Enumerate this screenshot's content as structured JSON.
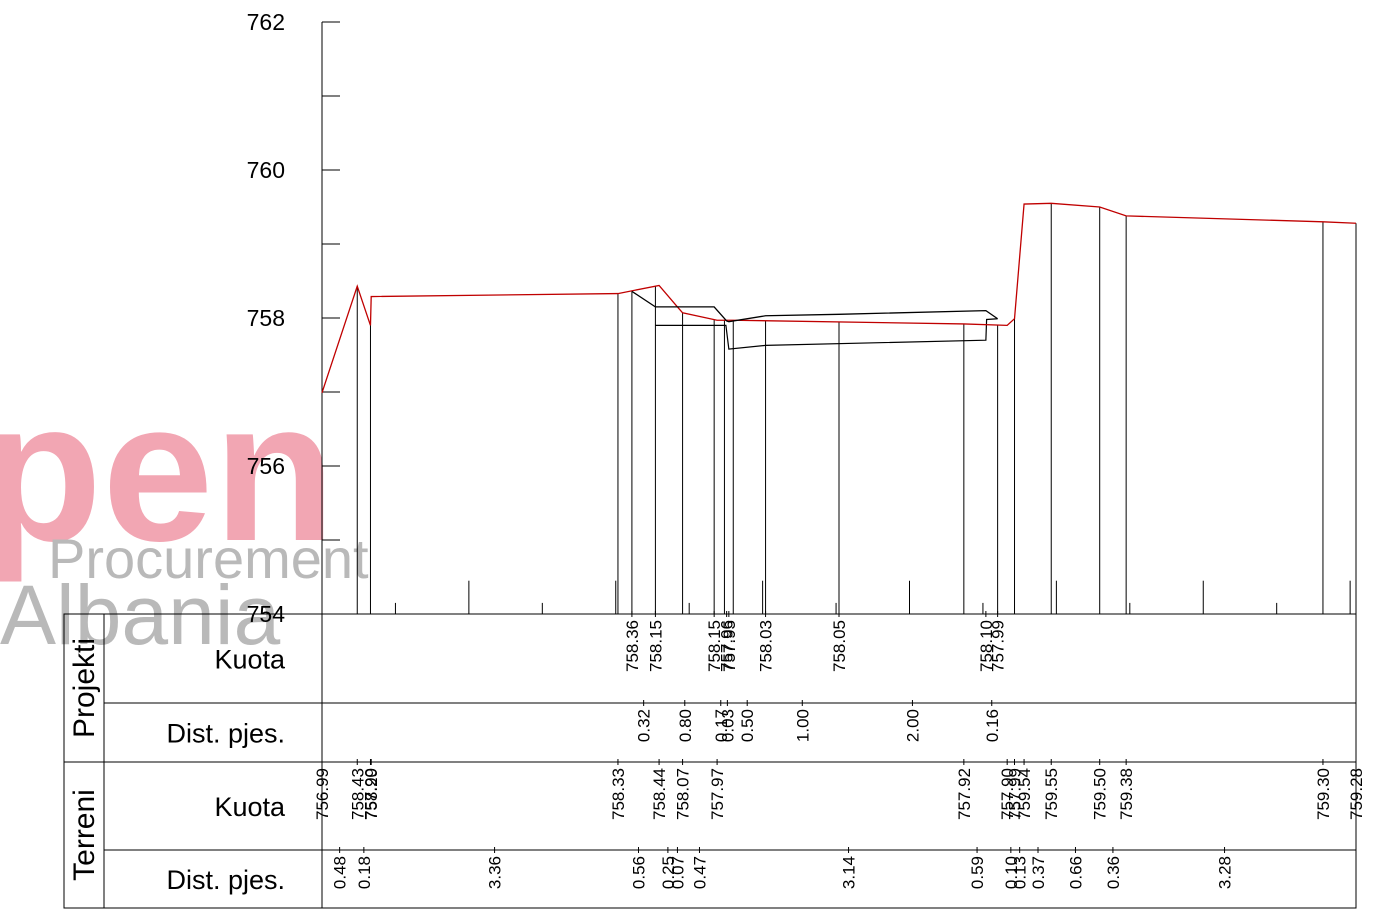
{
  "watermark": {
    "line1": "pen",
    "line2": "Procurement",
    "line3": "Albania"
  },
  "chart_data": {
    "type": "line",
    "ylim": [
      754,
      762
    ],
    "xlim": [
      0,
      14.08
    ],
    "y_ticks": [
      754,
      756,
      758,
      760,
      762
    ],
    "grid": false,
    "colors": {
      "terrain": "#c00000",
      "project": "#000000",
      "axis": "#000000"
    },
    "table": {
      "groups": [
        {
          "label": "Projekti",
          "rows": [
            {
              "label": "Kuota"
            },
            {
              "label": "Dist. pjes."
            }
          ]
        },
        {
          "label": "Terreni",
          "rows": [
            {
              "label": "Kuota"
            },
            {
              "label": "Dist. pjes."
            }
          ]
        }
      ]
    },
    "series": [
      {
        "key": "terrain",
        "points": [
          {
            "x": 0.0,
            "y": 756.99,
            "label": "756.99"
          },
          {
            "x": 0.48,
            "y": 758.43,
            "label": "758.43"
          },
          {
            "x": 0.66,
            "y": 757.9,
            "label": "757.90"
          },
          {
            "x": 0.67,
            "y": 758.29,
            "label": "758.29"
          },
          {
            "x": 4.03,
            "y": 758.33,
            "label": "758.33"
          },
          {
            "x": 4.59,
            "y": 758.44,
            "label": "758.44"
          },
          {
            "x": 4.84,
            "y": 758.15
          },
          {
            "x": 4.91,
            "y": 758.07,
            "label": "758.07"
          },
          {
            "x": 5.38,
            "y": 757.97,
            "label": "757.97"
          },
          {
            "x": 5.48,
            "y": 757.97
          },
          {
            "x": 5.6,
            "y": 757.97
          },
          {
            "x": 8.74,
            "y": 757.92,
            "label": "757.92"
          },
          {
            "x": 9.33,
            "y": 757.9,
            "label": "757.90"
          },
          {
            "x": 9.43,
            "y": 757.99,
            "label": "757.99"
          },
          {
            "x": 9.56,
            "y": 759.54,
            "label": "759.54"
          },
          {
            "x": 9.93,
            "y": 759.55,
            "label": "759.55"
          },
          {
            "x": 10.59,
            "y": 759.5,
            "label": "759.50"
          },
          {
            "x": 10.95,
            "y": 759.38,
            "label": "759.38"
          },
          {
            "x": 13.63,
            "y": 759.3,
            "label": "759.30"
          },
          {
            "x": 14.08,
            "y": 759.28,
            "label": "759.28"
          }
        ]
      },
      {
        "key": "project",
        "points": [
          {
            "x": 4.22,
            "y": 758.36,
            "label": "758.36"
          },
          {
            "x": 4.54,
            "y": 758.15,
            "label": "758.15"
          },
          {
            "x": 5.34,
            "y": 758.15,
            "label": "758.15"
          },
          {
            "x": 5.51,
            "y": 757.96,
            "label": "757.96"
          },
          {
            "x": 5.54,
            "y": 757.95,
            "label": "757.95"
          },
          {
            "x": 6.04,
            "y": 758.03,
            "label": "758.03"
          },
          {
            "x": 7.04,
            "y": 758.05,
            "label": "758.05"
          },
          {
            "x": 9.04,
            "y": 758.1,
            "label": "758.10"
          },
          {
            "x": 9.2,
            "y": 757.99,
            "label": "757.99"
          }
        ]
      }
    ],
    "inner_line": [
      {
        "x": 4.54,
        "y": 757.9
      },
      {
        "x": 5.5,
        "y": 757.9
      },
      {
        "x": 5.54,
        "y": 757.58
      },
      {
        "x": 6.04,
        "y": 757.63
      },
      {
        "x": 9.04,
        "y": 757.7
      },
      {
        "x": 9.05,
        "y": 757.98
      },
      {
        "x": 9.2,
        "y": 757.99
      }
    ],
    "project_dist": [
      {
        "x": 4.38,
        "label": "0.32"
      },
      {
        "x": 4.94,
        "label": "0.80"
      },
      {
        "x": 5.43,
        "label": "0.17"
      },
      {
        "x": 5.52,
        "label": "0.03"
      },
      {
        "x": 5.79,
        "label": "0.50"
      },
      {
        "x": 6.54,
        "label": "1.00"
      },
      {
        "x": 8.04,
        "label": "2.00"
      },
      {
        "x": 9.12,
        "label": "0.16"
      }
    ],
    "terrain_dist": [
      {
        "x": 0.24,
        "label": "0.48"
      },
      {
        "x": 0.57,
        "label": "0.18"
      },
      {
        "x": 2.35,
        "label": "3.36"
      },
      {
        "x": 4.31,
        "label": "0.56"
      },
      {
        "x": 4.71,
        "label": "0.25"
      },
      {
        "x": 4.84,
        "label": "0.07"
      },
      {
        "x": 5.14,
        "label": "0.47"
      },
      {
        "x": 7.17,
        "label": "3.14"
      },
      {
        "x": 8.92,
        "label": "0.59"
      },
      {
        "x": 9.38,
        "label": "0.10"
      },
      {
        "x": 9.5,
        "label": "0.13"
      },
      {
        "x": 9.75,
        "label": "0.37"
      },
      {
        "x": 10.26,
        "label": "0.66"
      },
      {
        "x": 10.77,
        "label": "0.36"
      },
      {
        "x": 12.29,
        "label": "3.28"
      }
    ],
    "vertical_lines": [
      0.48,
      0.66,
      4.03,
      4.22,
      4.54,
      4.91,
      5.34,
      5.48,
      5.6,
      6.04,
      7.04,
      8.74,
      9.2,
      9.43,
      9.93,
      10.59,
      10.95,
      13.63,
      14.08
    ],
    "minor_ticks": [
      {
        "x": 1.0,
        "y": 754.15
      },
      {
        "x": 2.0,
        "y": 754.45
      },
      {
        "x": 3.0,
        "y": 754.15
      },
      {
        "x": 4.0,
        "y": 754.45
      },
      {
        "x": 5.0,
        "y": 754.15
      },
      {
        "x": 6.0,
        "y": 754.45
      },
      {
        "x": 7.0,
        "y": 754.15
      },
      {
        "x": 8.0,
        "y": 754.45
      },
      {
        "x": 9.0,
        "y": 754.15
      },
      {
        "x": 10.0,
        "y": 754.45
      },
      {
        "x": 11.0,
        "y": 754.15
      },
      {
        "x": 12.0,
        "y": 754.45
      },
      {
        "x": 13.0,
        "y": 754.15
      },
      {
        "x": 14.0,
        "y": 754.45
      }
    ]
  }
}
